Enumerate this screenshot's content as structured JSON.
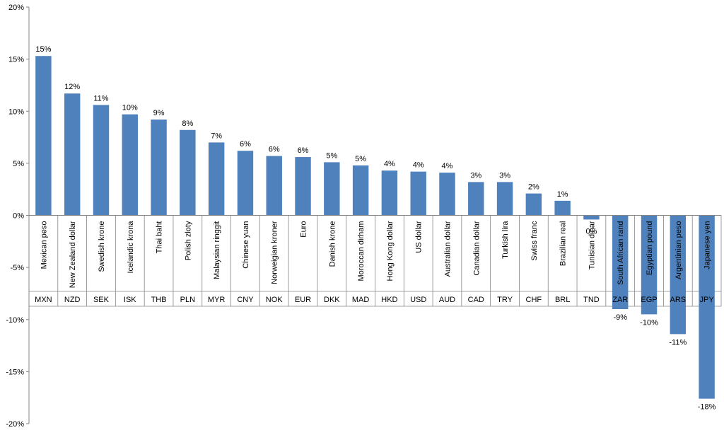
{
  "colors": {
    "bar": "#4f81bd",
    "axis": "#868686",
    "text": "#000000"
  },
  "chart_data": {
    "type": "bar",
    "title": "",
    "xlabel": "",
    "ylabel": "",
    "ylim": [
      -0.2,
      0.2
    ],
    "y_ticks": [
      {
        "value": 0.2,
        "label": "20%"
      },
      {
        "value": 0.15,
        "label": "15%"
      },
      {
        "value": 0.1,
        "label": "10%"
      },
      {
        "value": 0.05,
        "label": "5%"
      },
      {
        "value": 0.0,
        "label": "0%"
      },
      {
        "value": -0.05,
        "label": "-5%"
      },
      {
        "value": -0.1,
        "label": "-10%"
      },
      {
        "value": -0.15,
        "label": "-15%"
      },
      {
        "value": -0.2,
        "label": "-20%"
      }
    ],
    "grid": false,
    "legend": "none",
    "categories": [
      {
        "code": "MXN",
        "name": "Mexican peso",
        "value": 0.153,
        "label": "15%"
      },
      {
        "code": "NZD",
        "name": "New Zealand dollar",
        "value": 0.117,
        "label": "12%"
      },
      {
        "code": "SEK",
        "name": "Swedish krone",
        "value": 0.106,
        "label": "11%"
      },
      {
        "code": "ISK",
        "name": "Icelandic krona",
        "value": 0.097,
        "label": "10%"
      },
      {
        "code": "THB",
        "name": "Thai baht",
        "value": 0.092,
        "label": "9%"
      },
      {
        "code": "PLN",
        "name": "Polish zloty",
        "value": 0.082,
        "label": "8%"
      },
      {
        "code": "MYR",
        "name": "Malaysian ringgit",
        "value": 0.07,
        "label": "7%"
      },
      {
        "code": "CNY",
        "name": "Chinese yuan",
        "value": 0.062,
        "label": "6%"
      },
      {
        "code": "NOK",
        "name": "Norweigian kroner",
        "value": 0.057,
        "label": "6%"
      },
      {
        "code": "EUR",
        "name": "Euro",
        "value": 0.056,
        "label": "6%"
      },
      {
        "code": "DKK",
        "name": "Danish krone",
        "value": 0.051,
        "label": "5%"
      },
      {
        "code": "MAD",
        "name": "Moroccan dirham",
        "value": 0.048,
        "label": "5%"
      },
      {
        "code": "HKD",
        "name": "Hong Kong dollar",
        "value": 0.043,
        "label": "4%"
      },
      {
        "code": "USD",
        "name": "US dollar",
        "value": 0.042,
        "label": "4%"
      },
      {
        "code": "AUD",
        "name": "Australian dollar",
        "value": 0.041,
        "label": "4%"
      },
      {
        "code": "CAD",
        "name": "Canadian dollar",
        "value": 0.032,
        "label": "3%"
      },
      {
        "code": "TRY",
        "name": "Turkish lira",
        "value": 0.032,
        "label": "3%"
      },
      {
        "code": "CHF",
        "name": "Swiss franc",
        "value": 0.021,
        "label": "2%"
      },
      {
        "code": "BRL",
        "name": "Brazilian real",
        "value": 0.014,
        "label": "1%"
      },
      {
        "code": "TND",
        "name": "Tunisian dinar",
        "value": -0.004,
        "label": "0%"
      },
      {
        "code": "ZAR",
        "name": "South African rand",
        "value": -0.09,
        "label": "-9%"
      },
      {
        "code": "EGP",
        "name": "Egyptian pound",
        "value": -0.095,
        "label": "-10%"
      },
      {
        "code": "ARS",
        "name": "Argentinian peso",
        "value": -0.114,
        "label": "-11%"
      },
      {
        "code": "JPY",
        "name": "Japanese yen",
        "value": -0.176,
        "label": "-18%"
      }
    ]
  }
}
